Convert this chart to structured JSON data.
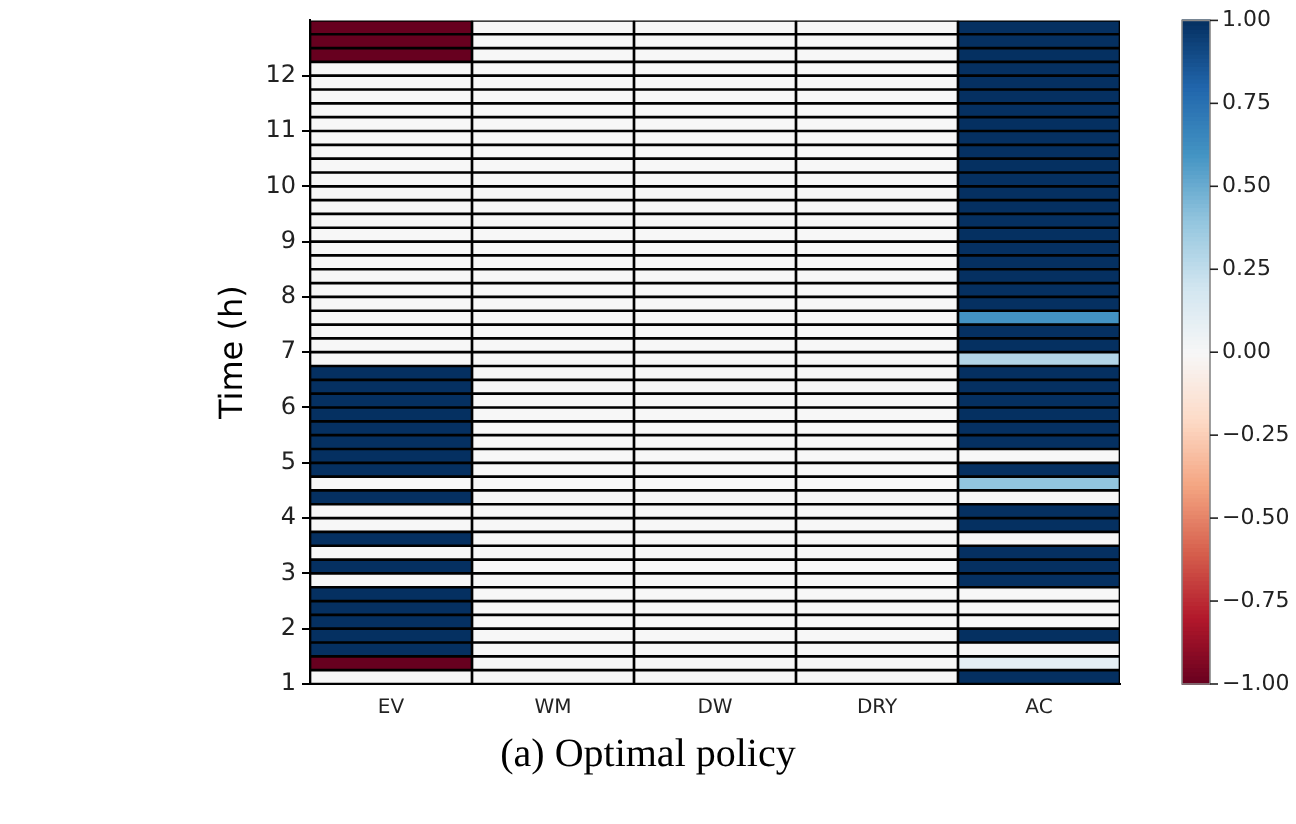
{
  "chart_data": {
    "type": "heatmap",
    "title": "(a) Optimal policy",
    "ylabel": "Time (h)",
    "categories": [
      "EV",
      "WM",
      "DW",
      "DRY",
      "AC"
    ],
    "ylim": [
      1,
      13
    ],
    "yticks": [
      1,
      2,
      3,
      4,
      5,
      6,
      7,
      8,
      9,
      10,
      11,
      12
    ],
    "clim": [
      -1,
      1
    ],
    "cticks": [
      {
        "value": -1,
        "label": "−1.00"
      },
      {
        "value": -0.75,
        "label": "−0.75"
      },
      {
        "value": -0.5,
        "label": "−0.50"
      },
      {
        "value": -0.25,
        "label": "−0.25"
      },
      {
        "value": 0,
        "label": "0.00"
      },
      {
        "value": 0.25,
        "label": "0.25"
      },
      {
        "value": 0.5,
        "label": "0.50"
      },
      {
        "value": 0.75,
        "label": "0.75"
      },
      {
        "value": 1,
        "label": "1.00"
      }
    ],
    "cells": [
      [
        -1,
        0,
        0,
        0,
        1
      ],
      [
        -1,
        0,
        0,
        0,
        1
      ],
      [
        -1,
        0,
        0,
        0,
        1
      ],
      [
        0,
        0,
        0,
        0,
        1
      ],
      [
        0,
        0,
        0,
        0,
        1
      ],
      [
        0,
        0,
        0,
        0,
        1
      ],
      [
        0,
        0,
        0,
        0,
        1
      ],
      [
        0,
        0,
        0,
        0,
        1
      ],
      [
        0,
        0,
        0,
        0,
        1
      ],
      [
        0,
        0,
        0,
        0,
        1
      ],
      [
        0,
        0,
        0,
        0,
        1
      ],
      [
        0,
        0,
        0,
        0,
        1
      ],
      [
        0,
        0,
        0,
        0,
        1
      ],
      [
        0,
        0,
        0,
        0,
        1
      ],
      [
        0,
        0,
        0,
        0,
        1
      ],
      [
        0,
        0,
        0,
        0,
        1
      ],
      [
        0,
        0,
        0,
        0,
        1
      ],
      [
        0,
        0,
        0,
        0,
        1
      ],
      [
        0,
        0,
        0,
        0,
        1
      ],
      [
        0,
        0,
        0,
        0,
        1
      ],
      [
        0,
        0,
        0,
        0,
        1
      ],
      [
        0,
        0,
        0,
        0,
        0.6
      ],
      [
        0,
        0,
        0,
        0,
        1
      ],
      [
        0,
        0,
        0,
        0,
        1
      ],
      [
        0,
        0,
        0,
        0,
        0.3
      ],
      [
        1,
        0,
        0,
        0,
        1
      ],
      [
        1,
        0,
        0,
        0,
        1
      ],
      [
        1,
        0,
        0,
        0,
        1
      ],
      [
        1,
        0,
        0,
        0,
        1
      ],
      [
        1,
        0,
        0,
        0,
        1
      ],
      [
        1,
        0,
        0,
        0,
        1
      ],
      [
        1,
        0,
        0,
        0,
        0
      ],
      [
        1,
        0,
        0,
        0,
        1
      ],
      [
        0,
        0,
        0,
        0,
        0.4
      ],
      [
        1,
        0,
        0,
        0,
        0
      ],
      [
        0,
        0,
        0,
        0,
        1
      ],
      [
        0,
        0,
        0,
        0,
        1
      ],
      [
        1,
        0,
        0,
        0,
        0
      ],
      [
        0,
        0,
        0,
        0,
        1
      ],
      [
        1,
        0,
        0,
        0,
        1
      ],
      [
        0,
        0,
        0,
        0,
        1
      ],
      [
        1,
        0,
        0,
        0,
        0
      ],
      [
        1,
        0,
        0,
        0,
        0
      ],
      [
        1,
        0,
        0,
        0,
        0
      ],
      [
        1,
        0,
        0,
        0,
        1
      ],
      [
        1,
        0,
        0,
        0,
        0
      ],
      [
        -1,
        0,
        0,
        0,
        0.1
      ],
      [
        0,
        0,
        0,
        0,
        1
      ]
    ]
  }
}
